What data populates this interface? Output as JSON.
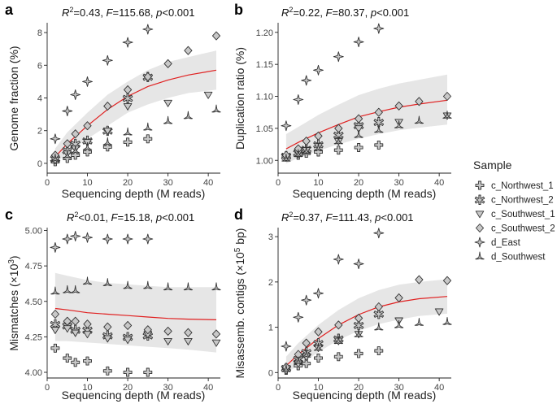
{
  "figure": {
    "legend": {
      "title": "Sample",
      "entries": [
        {
          "name": "c_Northwest_1",
          "marker": "plus-icon"
        },
        {
          "name": "c_Northwest_2",
          "marker": "asterisk-icon"
        },
        {
          "name": "c_Southwest_1",
          "marker": "triangle-down-icon"
        },
        {
          "name": "c_Southwest_2",
          "marker": "diamond-icon"
        },
        {
          "name": "d_East",
          "marker": "star-icon"
        },
        {
          "name": "d_Southwest",
          "marker": "tri-branch-icon"
        }
      ]
    },
    "colors": {
      "fit_line": "#e02020",
      "ribbon": "#e6e6e6",
      "marker_stroke": "#333333",
      "marker_fill": "#c8c8c8"
    }
  },
  "chart_data": [
    {
      "type": "scatter",
      "letter": "a",
      "stat": {
        "r2": "0.43",
        "f": "115.68",
        "p": "<0.001"
      },
      "xlabel": "Sequencing depth (M reads)",
      "ylabel": "Genome fraction (%)",
      "xlim": [
        0,
        43
      ],
      "ylim": [
        -0.6,
        8.6
      ],
      "xticks": [
        0,
        10,
        20,
        30,
        40
      ],
      "yticks": [
        0,
        2,
        4,
        6,
        8
      ],
      "ytick_labels": [
        "0",
        "2",
        "4",
        "6",
        "8"
      ],
      "fit": {
        "x": [
          2,
          5,
          10,
          15,
          20,
          25,
          30,
          35,
          42
        ],
        "y": [
          0.4,
          1.2,
          2.3,
          3.3,
          4.1,
          4.7,
          5.1,
          5.4,
          5.7
        ],
        "lo": [
          0.0,
          0.6,
          1.5,
          2.3,
          3.1,
          3.6,
          4.0,
          4.3,
          4.5
        ],
        "hi": [
          0.9,
          1.9,
          3.1,
          4.2,
          5.0,
          5.7,
          6.2,
          6.5,
          6.9
        ]
      },
      "series": [
        {
          "name": "c_Northwest_1",
          "x": [
            2,
            5,
            7,
            10,
            15,
            20,
            25
          ],
          "y": [
            0.1,
            0.3,
            0.5,
            0.7,
            1.0,
            1.3,
            1.5
          ]
        },
        {
          "name": "c_Northwest_2",
          "x": [
            2,
            5,
            7,
            10,
            15,
            20,
            25
          ],
          "y": [
            0.3,
            0.8,
            1.2,
            1.4,
            2.0,
            4.0,
            5.3
          ]
        },
        {
          "name": "c_Southwest_1",
          "x": [
            2,
            5,
            7,
            10,
            15,
            20,
            30,
            40
          ],
          "y": [
            0.2,
            0.6,
            0.9,
            1.3,
            2.0,
            3.5,
            3.7,
            4.2
          ]
        },
        {
          "name": "c_Southwest_2",
          "x": [
            2,
            5,
            7,
            10,
            15,
            20,
            25,
            30,
            35,
            42
          ],
          "y": [
            0.5,
            1.2,
            1.8,
            2.3,
            3.5,
            4.5,
            5.3,
            6.1,
            6.9,
            7.8
          ]
        },
        {
          "name": "d_East",
          "x": [
            2,
            5,
            7,
            10,
            15,
            20,
            25
          ],
          "y": [
            1.5,
            3.2,
            4.2,
            5.0,
            6.3,
            7.4,
            8.2
          ]
        },
        {
          "name": "d_Southwest",
          "x": [
            2,
            5,
            7,
            10,
            15,
            20,
            25,
            30,
            35,
            42
          ],
          "y": [
            0.3,
            0.5,
            0.8,
            1.0,
            1.3,
            1.9,
            2.2,
            2.6,
            2.9,
            3.3
          ]
        }
      ]
    },
    {
      "type": "scatter",
      "letter": "b",
      "stat": {
        "r2": "0.22",
        "f": "80.37",
        "p": "<0.001"
      },
      "xlabel": "Sequencing depth (M reads)",
      "ylabel": "Duplication ratio (%)",
      "xlim": [
        0,
        43
      ],
      "ylim": [
        0.98,
        1.215
      ],
      "xticks": [
        0,
        10,
        20,
        30,
        40
      ],
      "yticks": [
        1.0,
        1.05,
        1.1,
        1.15,
        1.2
      ],
      "ytick_labels": [
        "1.00",
        "1.05",
        "1.10",
        "1.15",
        "1.20"
      ],
      "fit": {
        "x": [
          2,
          5,
          10,
          15,
          20,
          25,
          30,
          35,
          42
        ],
        "y": [
          1.018,
          1.028,
          1.043,
          1.056,
          1.068,
          1.076,
          1.083,
          1.088,
          1.094
        ],
        "lo": [
          0.995,
          1.004,
          1.015,
          1.025,
          1.034,
          1.041,
          1.047,
          1.051,
          1.056
        ],
        "hi": [
          1.041,
          1.052,
          1.071,
          1.087,
          1.102,
          1.112,
          1.12,
          1.126,
          1.134
        ]
      },
      "series": [
        {
          "name": "c_Northwest_1",
          "x": [
            2,
            5,
            7,
            10,
            15,
            20,
            25
          ],
          "y": [
            1.005,
            1.008,
            1.011,
            1.013,
            1.016,
            1.02,
            1.024
          ]
        },
        {
          "name": "c_Northwest_2",
          "x": [
            2,
            5,
            7,
            10,
            15,
            20,
            25
          ],
          "y": [
            1.007,
            1.012,
            1.018,
            1.025,
            1.04,
            1.055,
            1.06
          ]
        },
        {
          "name": "c_Southwest_1",
          "x": [
            2,
            5,
            7,
            10,
            15,
            20,
            30,
            42
          ],
          "y": [
            1.006,
            1.012,
            1.016,
            1.022,
            1.03,
            1.05,
            1.06,
            1.07
          ]
        },
        {
          "name": "c_Southwest_2",
          "x": [
            2,
            5,
            7,
            10,
            15,
            20,
            25,
            30,
            35,
            42
          ],
          "y": [
            1.008,
            1.018,
            1.03,
            1.038,
            1.05,
            1.065,
            1.075,
            1.085,
            1.092,
            1.1
          ]
        },
        {
          "name": "d_East",
          "x": [
            2,
            5,
            7,
            10,
            15,
            20,
            25
          ],
          "y": [
            1.054,
            1.095,
            1.125,
            1.141,
            1.162,
            1.185,
            1.206
          ]
        },
        {
          "name": "d_Southwest",
          "x": [
            2,
            5,
            7,
            10,
            15,
            20,
            25,
            30,
            35,
            42
          ],
          "y": [
            1.003,
            1.01,
            1.015,
            1.02,
            1.03,
            1.04,
            1.048,
            1.055,
            1.062,
            1.07
          ]
        }
      ]
    },
    {
      "type": "scatter",
      "letter": "c",
      "stat": {
        "r2": "<0.01",
        "f": "15.18",
        "p": "<0.001"
      },
      "xlabel": "Sequencing depth (M reads)",
      "ylabel": "Mismatches (×10",
      "ylabel_sup": "3",
      "ylabel_end": ")",
      "xlim": [
        0,
        43
      ],
      "ylim": [
        3.96,
        5.02
      ],
      "xticks": [
        0,
        10,
        20,
        30,
        40
      ],
      "yticks": [
        4.0,
        4.25,
        4.5,
        4.75,
        5.0
      ],
      "ytick_labels": [
        "4.00",
        "4.25",
        "4.50",
        "4.75",
        "5.00"
      ],
      "fit": {
        "x": [
          2,
          5,
          10,
          15,
          20,
          25,
          30,
          35,
          42
        ],
        "y": [
          4.45,
          4.44,
          4.42,
          4.41,
          4.4,
          4.39,
          4.38,
          4.375,
          4.37
        ],
        "lo": [
          4.22,
          4.22,
          4.21,
          4.2,
          4.19,
          4.18,
          4.17,
          4.16,
          4.14
        ],
        "hi": [
          4.7,
          4.68,
          4.65,
          4.63,
          4.62,
          4.61,
          4.6,
          4.6,
          4.6
        ]
      },
      "series": [
        {
          "name": "c_Northwest_1",
          "x": [
            2,
            5,
            7,
            10,
            15,
            20,
            25
          ],
          "y": [
            4.17,
            4.1,
            4.07,
            4.08,
            4.01,
            4.0,
            4.0
          ]
        },
        {
          "name": "c_Northwest_2",
          "x": [
            2,
            5,
            7,
            10,
            15,
            20,
            25
          ],
          "y": [
            4.34,
            4.33,
            4.3,
            4.3,
            4.26,
            4.25,
            4.26
          ]
        },
        {
          "name": "c_Southwest_1",
          "x": [
            2,
            5,
            7,
            10,
            15,
            20,
            25,
            30,
            35,
            42
          ],
          "y": [
            4.3,
            4.31,
            4.28,
            4.27,
            4.24,
            4.23,
            4.27,
            4.22,
            4.22,
            4.21
          ]
        },
        {
          "name": "c_Southwest_2",
          "x": [
            2,
            5,
            7,
            10,
            15,
            20,
            25,
            30,
            35,
            42
          ],
          "y": [
            4.41,
            4.36,
            4.36,
            4.34,
            4.32,
            4.33,
            4.3,
            4.29,
            4.28,
            4.27
          ]
        },
        {
          "name": "d_East",
          "x": [
            2,
            5,
            7,
            10,
            15,
            20,
            25
          ],
          "y": [
            4.88,
            4.94,
            4.96,
            4.95,
            4.94,
            4.94,
            4.94
          ]
        },
        {
          "name": "d_Southwest",
          "x": [
            2,
            5,
            7,
            10,
            15,
            20,
            25,
            30,
            35,
            42
          ],
          "y": [
            4.57,
            4.58,
            4.58,
            4.64,
            4.63,
            4.61,
            4.61,
            4.6,
            4.6,
            4.6
          ]
        }
      ]
    },
    {
      "type": "scatter",
      "letter": "d",
      "stat": {
        "r2": "0.37",
        "f": "111.43",
        "p": "<0.001"
      },
      "xlabel": "Sequencing depth (M reads)",
      "ylabel": "Misassemb. contigs (×10",
      "ylabel_sup": "5",
      "ylabel_end": " bp)",
      "xlim": [
        0,
        43
      ],
      "ylim": [
        -0.12,
        3.2
      ],
      "xticks": [
        0,
        10,
        20,
        30,
        40
      ],
      "yticks": [
        0,
        1,
        2,
        3
      ],
      "ytick_labels": [
        "0",
        "1",
        "2",
        "3"
      ],
      "fit": {
        "x": [
          2,
          5,
          10,
          15,
          20,
          25,
          30,
          35,
          42
        ],
        "y": [
          0.15,
          0.4,
          0.75,
          1.05,
          1.28,
          1.45,
          1.56,
          1.63,
          1.68
        ],
        "lo": [
          0.0,
          0.15,
          0.45,
          0.72,
          0.92,
          1.07,
          1.17,
          1.25,
          1.3
        ],
        "hi": [
          0.35,
          0.65,
          1.05,
          1.38,
          1.64,
          1.82,
          1.94,
          2.0,
          2.06
        ]
      },
      "series": [
        {
          "name": "c_Northwest_1",
          "x": [
            2,
            5,
            7,
            10,
            15,
            20,
            25
          ],
          "y": [
            0.05,
            0.15,
            0.2,
            0.32,
            0.35,
            0.42,
            0.48
          ]
        },
        {
          "name": "c_Northwest_2",
          "x": [
            2,
            5,
            7,
            10,
            15,
            20,
            25
          ],
          "y": [
            0.1,
            0.3,
            0.45,
            0.65,
            0.75,
            1.05,
            1.3
          ]
        },
        {
          "name": "c_Southwest_1",
          "x": [
            2,
            5,
            7,
            10,
            15,
            20,
            30,
            40
          ],
          "y": [
            0.05,
            0.2,
            0.35,
            0.55,
            0.7,
            0.85,
            1.15,
            1.35
          ]
        },
        {
          "name": "c_Southwest_2",
          "x": [
            2,
            5,
            7,
            10,
            15,
            20,
            25,
            30,
            35,
            42
          ],
          "y": [
            0.12,
            0.4,
            0.65,
            0.9,
            1.05,
            1.2,
            1.45,
            1.65,
            2.05,
            2.03
          ]
        },
        {
          "name": "d_East",
          "x": [
            2,
            5,
            7,
            10,
            15,
            20,
            25
          ],
          "y": [
            0.58,
            1.22,
            1.6,
            1.75,
            2.5,
            2.4,
            3.08
          ]
        },
        {
          "name": "d_Southwest",
          "x": [
            2,
            5,
            7,
            10,
            15,
            20,
            25,
            30,
            35,
            42
          ],
          "y": [
            0.08,
            0.25,
            0.4,
            0.55,
            0.7,
            0.85,
            1.0,
            1.05,
            1.1,
            1.12
          ]
        }
      ]
    }
  ]
}
